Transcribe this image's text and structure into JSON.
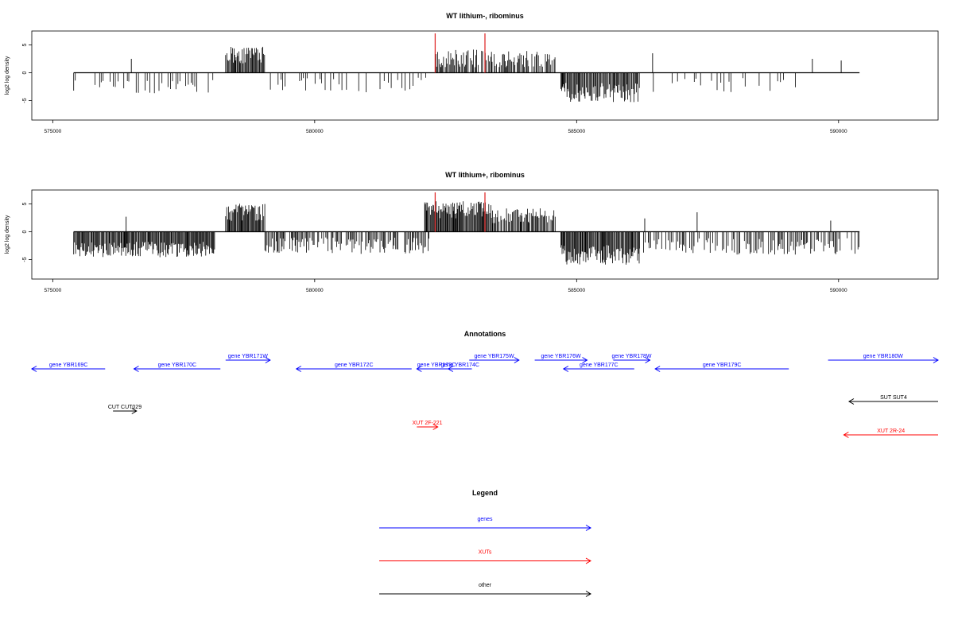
{
  "chart_data": [
    {
      "type": "bar",
      "title": "WT lithium-, ribominus",
      "ylabel": "log2 log density",
      "xlim": [
        574600,
        591900
      ],
      "ylim": [
        -8.5,
        7.5
      ],
      "yticks": [
        -5,
        0,
        5
      ],
      "xticks": [
        575000,
        580000,
        585000,
        590000
      ],
      "xtick_labels": [
        "575000",
        "580000",
        "585000",
        "590000"
      ],
      "baseline": {
        "from": 575400,
        "to": 590400
      },
      "highlight_positions": [
        582300,
        583250
      ],
      "highlight_color": "#e03030",
      "segments": [
        {
          "from": 575400,
          "to": 578100,
          "level": -2.5,
          "spread": 1.2,
          "density": 0.35
        },
        {
          "from": 578300,
          "to": 579050,
          "level": 3.2,
          "spread": 1.5,
          "density": 0.9
        },
        {
          "from": 579050,
          "to": 582200,
          "level": -2.2,
          "spread": 1.3,
          "density": 0.35
        },
        {
          "from": 582300,
          "to": 584600,
          "level": 2.6,
          "spread": 1.6,
          "density": 0.75
        },
        {
          "from": 584700,
          "to": 586200,
          "level": -3.6,
          "spread": 1.8,
          "density": 0.9
        },
        {
          "from": 586200,
          "to": 589200,
          "level": -2.2,
          "spread": 1.4,
          "density": 0.3
        }
      ],
      "spikes": [
        {
          "x": 576500,
          "y": 2.5
        },
        {
          "x": 586450,
          "y": 3.5
        },
        {
          "x": 589500,
          "y": 2.5
        },
        {
          "x": 590050,
          "y": 2.2
        }
      ]
    },
    {
      "type": "bar",
      "title": "WT lithium+, ribominus",
      "ylabel": "log2 log density",
      "xlim": [
        574600,
        591900
      ],
      "ylim": [
        -8.5,
        7.5
      ],
      "yticks": [
        -5,
        0,
        5
      ],
      "xticks": [
        575000,
        580000,
        585000,
        590000
      ],
      "xtick_labels": [
        "575000",
        "580000",
        "585000",
        "590000"
      ],
      "baseline": {
        "from": 575400,
        "to": 590400
      },
      "highlight_positions": [
        582300,
        583250
      ],
      "highlight_color": "#e03030",
      "segments": [
        {
          "from": 575400,
          "to": 578100,
          "level": -3.2,
          "spread": 1.4,
          "density": 0.95
        },
        {
          "from": 578300,
          "to": 579050,
          "level": 3.5,
          "spread": 1.6,
          "density": 0.95
        },
        {
          "from": 579050,
          "to": 582200,
          "level": -2.5,
          "spread": 1.5,
          "density": 0.7
        },
        {
          "from": 582100,
          "to": 583400,
          "level": 4.0,
          "spread": 1.6,
          "density": 1.0
        },
        {
          "from": 583400,
          "to": 584600,
          "level": 2.8,
          "spread": 1.4,
          "density": 0.85
        },
        {
          "from": 584700,
          "to": 586200,
          "level": -4.2,
          "spread": 1.8,
          "density": 0.95
        },
        {
          "from": 586200,
          "to": 590400,
          "level": -2.6,
          "spread": 1.5,
          "density": 0.6
        }
      ],
      "spikes": [
        {
          "x": 576400,
          "y": 2.7
        },
        {
          "x": 586300,
          "y": 2.4
        },
        {
          "x": 587300,
          "y": 3.5
        },
        {
          "x": 589850,
          "y": 2.0
        }
      ]
    }
  ],
  "annotations": {
    "title": "Annotations",
    "xlim": [
      574600,
      591900
    ],
    "features": [
      {
        "label": "gene YBR169C",
        "type": "gene",
        "start": 574600,
        "end": 576000,
        "strand": "-",
        "row": 2
      },
      {
        "label": "gene YBR170C",
        "type": "gene",
        "start": 576550,
        "end": 578200,
        "strand": "-",
        "row": 2
      },
      {
        "label": "gene YBR171W",
        "type": "gene",
        "start": 578300,
        "end": 579150,
        "strand": "+",
        "row": 1
      },
      {
        "label": "gene YBR172C",
        "type": "gene",
        "start": 579650,
        "end": 581850,
        "strand": "-",
        "row": 2
      },
      {
        "label": "gene YBR173C",
        "type": "gene",
        "start": 581950,
        "end": 582700,
        "strand": "-",
        "row": 2
      },
      {
        "label": "gene YBR174C",
        "type": "gene",
        "start": 582550,
        "end": 583000,
        "strand": "-",
        "row": 2
      },
      {
        "label": "gene YBR175W",
        "type": "gene",
        "start": 582950,
        "end": 583900,
        "strand": "+",
        "row": 1
      },
      {
        "label": "gene YBR176W",
        "type": "gene",
        "start": 584200,
        "end": 585200,
        "strand": "+",
        "row": 1
      },
      {
        "label": "gene YBR177C",
        "type": "gene",
        "start": 584750,
        "end": 586100,
        "strand": "-",
        "row": 2
      },
      {
        "label": "gene YBR178W",
        "type": "gene",
        "start": 585700,
        "end": 586400,
        "strand": "+",
        "row": 1
      },
      {
        "label": "gene YBR179C",
        "type": "gene",
        "start": 586500,
        "end": 589050,
        "strand": "-",
        "row": 2
      },
      {
        "label": "gene YBR180W",
        "type": "gene",
        "start": 589800,
        "end": 591900,
        "strand": "+",
        "row": 1
      },
      {
        "label": "CUT CUT029",
        "type": "other",
        "start": 576150,
        "end": 576600,
        "strand": "+",
        "row": 3
      },
      {
        "label": "SUT SUT4",
        "type": "other",
        "start": 590200,
        "end": 591900,
        "strand": "-",
        "row": 4
      },
      {
        "label": "XUT 2F-221",
        "type": "xut",
        "start": 581950,
        "end": 582350,
        "strand": "+",
        "row": 5
      },
      {
        "label": "XUT 2R-24",
        "type": "xut",
        "start": 590100,
        "end": 591900,
        "strand": "-",
        "row": 6
      }
    ]
  },
  "legend": {
    "title": "Legend",
    "items": [
      {
        "label": "genes",
        "type": "gene"
      },
      {
        "label": "XUTs",
        "type": "xut"
      },
      {
        "label": "other",
        "type": "other"
      }
    ]
  },
  "colors": {
    "gene": "#0000ff",
    "xut": "#ff0000",
    "other": "#000000",
    "bars": "#000000"
  }
}
